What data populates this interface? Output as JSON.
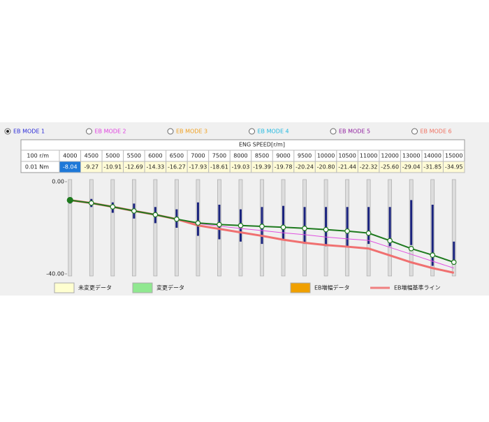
{
  "modes": [
    {
      "label": "EB MODE 1",
      "color": "#2a2ad8",
      "selected": true
    },
    {
      "label": "EB MODE 2",
      "color": "#e040e0",
      "selected": false
    },
    {
      "label": "EB MODE 3",
      "color": "#f0a020",
      "selected": false
    },
    {
      "label": "EB MODE 4",
      "color": "#20b8e0",
      "selected": false
    },
    {
      "label": "EB MODE 5",
      "color": "#9020a0",
      "selected": false
    },
    {
      "label": "EB MODE 6",
      "color": "#f07060",
      "selected": false
    }
  ],
  "table": {
    "title": "ENG SPEED[r/m]",
    "row_labels": [
      "100 r/m",
      "0.01 Nm"
    ],
    "speeds": [
      4000,
      4500,
      5000,
      5500,
      6000,
      6500,
      7000,
      7500,
      8000,
      8500,
      9000,
      9500,
      10000,
      10500,
      11000,
      12000,
      13000,
      14000,
      15000
    ],
    "values": [
      "-8.04",
      "-9.27",
      "-10.91",
      "-12.69",
      "-14.33",
      "-16.27",
      "-17.93",
      "-18.61",
      "-19.03",
      "-19.39",
      "-19.78",
      "-20.24",
      "-20.80",
      "-21.44",
      "-22.32",
      "-25.60",
      "-29.04",
      "-31.85",
      "-34.95"
    ]
  },
  "chart": {
    "type": "line",
    "ylim": [
      -40,
      0
    ],
    "yticks": [
      {
        "value": 0,
        "label": "0.00"
      },
      {
        "value": -40,
        "label": "-40.00"
      }
    ],
    "series": [
      {
        "color": "#f07070",
        "values": [
          -8.04,
          -9.27,
          -10.91,
          -12.69,
          -14.33,
          -16.27,
          -19,
          -20.5,
          -22,
          -23.5,
          -25.2,
          -26.5,
          -27.5,
          -28.2,
          -29,
          -32,
          -35,
          -37.5,
          -39.5
        ]
      },
      {
        "color": "#e050e0",
        "values": [
          -8.04,
          -9.27,
          -10.91,
          -12.69,
          -14.33,
          -16.27,
          -18.2,
          -19.3,
          -20.3,
          -21.2,
          -22.2,
          -23,
          -24,
          -24.8,
          -25.5,
          -28.5,
          -31.5,
          -34.5,
          -37.5
        ]
      },
      {
        "color": "#1e7a1e",
        "values": [
          -8.04,
          -9.27,
          -10.91,
          -12.69,
          -14.33,
          -16.27,
          -17.93,
          -18.61,
          -19.03,
          -19.39,
          -19.78,
          -20.24,
          -20.8,
          -21.44,
          -22.32,
          -25.6,
          -29.04,
          -31.85,
          -34.95
        ]
      }
    ],
    "ranges": [
      [
        -8,
        -9.5
      ],
      [
        -7.5,
        -11
      ],
      [
        -9,
        -13.5
      ],
      [
        -9.5,
        -16
      ],
      [
        -11,
        -18
      ],
      [
        -12,
        -20
      ],
      [
        -9,
        -23.5
      ],
      [
        -10,
        -25
      ],
      [
        -12,
        -26
      ],
      [
        -11,
        -27
      ],
      [
        -10.5,
        -25.5
      ],
      [
        -11,
        -27
      ],
      [
        -11,
        -28
      ],
      [
        -11,
        -28
      ],
      [
        -11,
        -27
      ],
      [
        -11,
        -28
      ],
      [
        -8,
        -27.5
      ],
      [
        -10,
        -36.5
      ],
      [
        -26,
        -36
      ]
    ],
    "range_color": "#1a237e"
  },
  "legend": [
    {
      "label": "未変更データ",
      "color": "#ffffd0",
      "kind": "box"
    },
    {
      "label": "変更データ",
      "color": "#90e890",
      "kind": "box"
    },
    {
      "label": "EB増幅データ",
      "color": "#f0a000",
      "kind": "box"
    },
    {
      "label": "EB増幅基準ライン",
      "color": "#f08080",
      "kind": "line"
    }
  ]
}
